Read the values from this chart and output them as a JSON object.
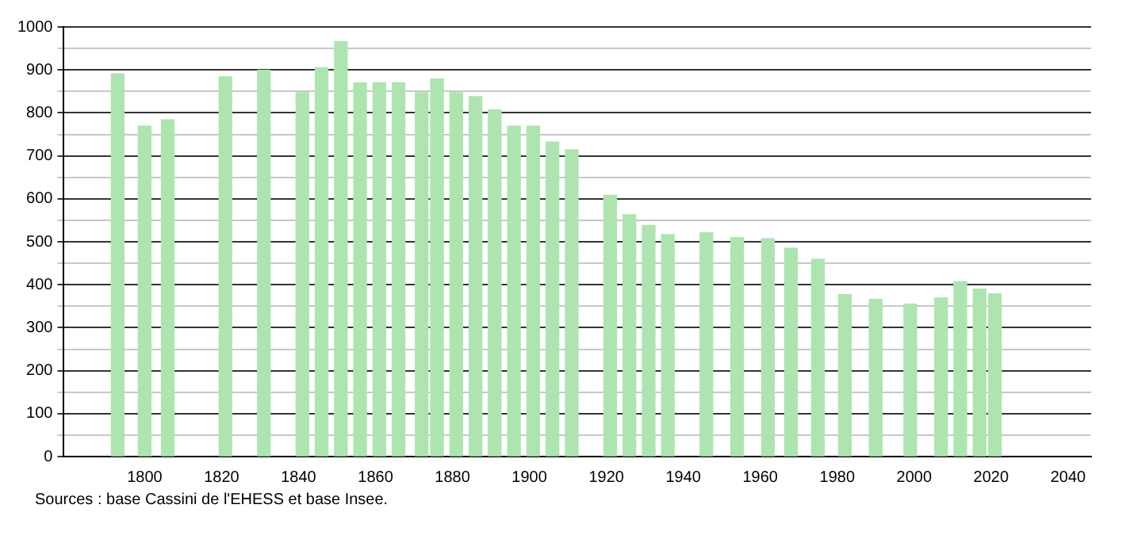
{
  "chart_data": {
    "type": "bar",
    "x": [
      1793,
      1800,
      1806,
      1821,
      1831,
      1841,
      1846,
      1851,
      1856,
      1861,
      1866,
      1872,
      1876,
      1881,
      1886,
      1891,
      1896,
      1901,
      1906,
      1911,
      1921,
      1926,
      1931,
      1936,
      1946,
      1954,
      1962,
      1968,
      1975,
      1982,
      1990,
      1999,
      2007,
      2012,
      2017,
      2021
    ],
    "values": [
      891,
      769,
      784,
      884,
      899,
      847,
      905,
      966,
      870,
      870,
      870,
      847,
      879,
      847,
      838,
      807,
      769,
      769,
      732,
      714,
      608,
      563,
      538,
      517,
      521,
      510,
      507,
      485,
      459,
      377,
      366,
      355,
      369,
      407,
      390,
      379
    ],
    "color": "#aee4b0",
    "xlim": [
      1779,
      2046
    ],
    "xticks": [
      1800,
      1820,
      1840,
      1860,
      1880,
      1900,
      1920,
      1940,
      1960,
      1980,
      2000,
      2020,
      2040
    ],
    "ylim": [
      0,
      1000
    ],
    "yticks": [
      0,
      {
        "value": 50,
        "label": null
      },
      100,
      {
        "value": 150,
        "label": null
      },
      200,
      {
        "value": 250,
        "label": null
      },
      300,
      {
        "value": 350,
        "label": null
      },
      400,
      {
        "value": 450,
        "label": null
      },
      500,
      {
        "value": 550,
        "label": null
      },
      600,
      {
        "value": 650,
        "label": null
      },
      700,
      {
        "value": 750,
        "label": null
      },
      800,
      {
        "value": 850,
        "label": null
      },
      900,
      {
        "value": 950,
        "label": null
      },
      1000
    ],
    "grid": "y",
    "legend": false,
    "annotations": [
      "Sources : base Cassini de l'EHESS et base Insee."
    ]
  }
}
